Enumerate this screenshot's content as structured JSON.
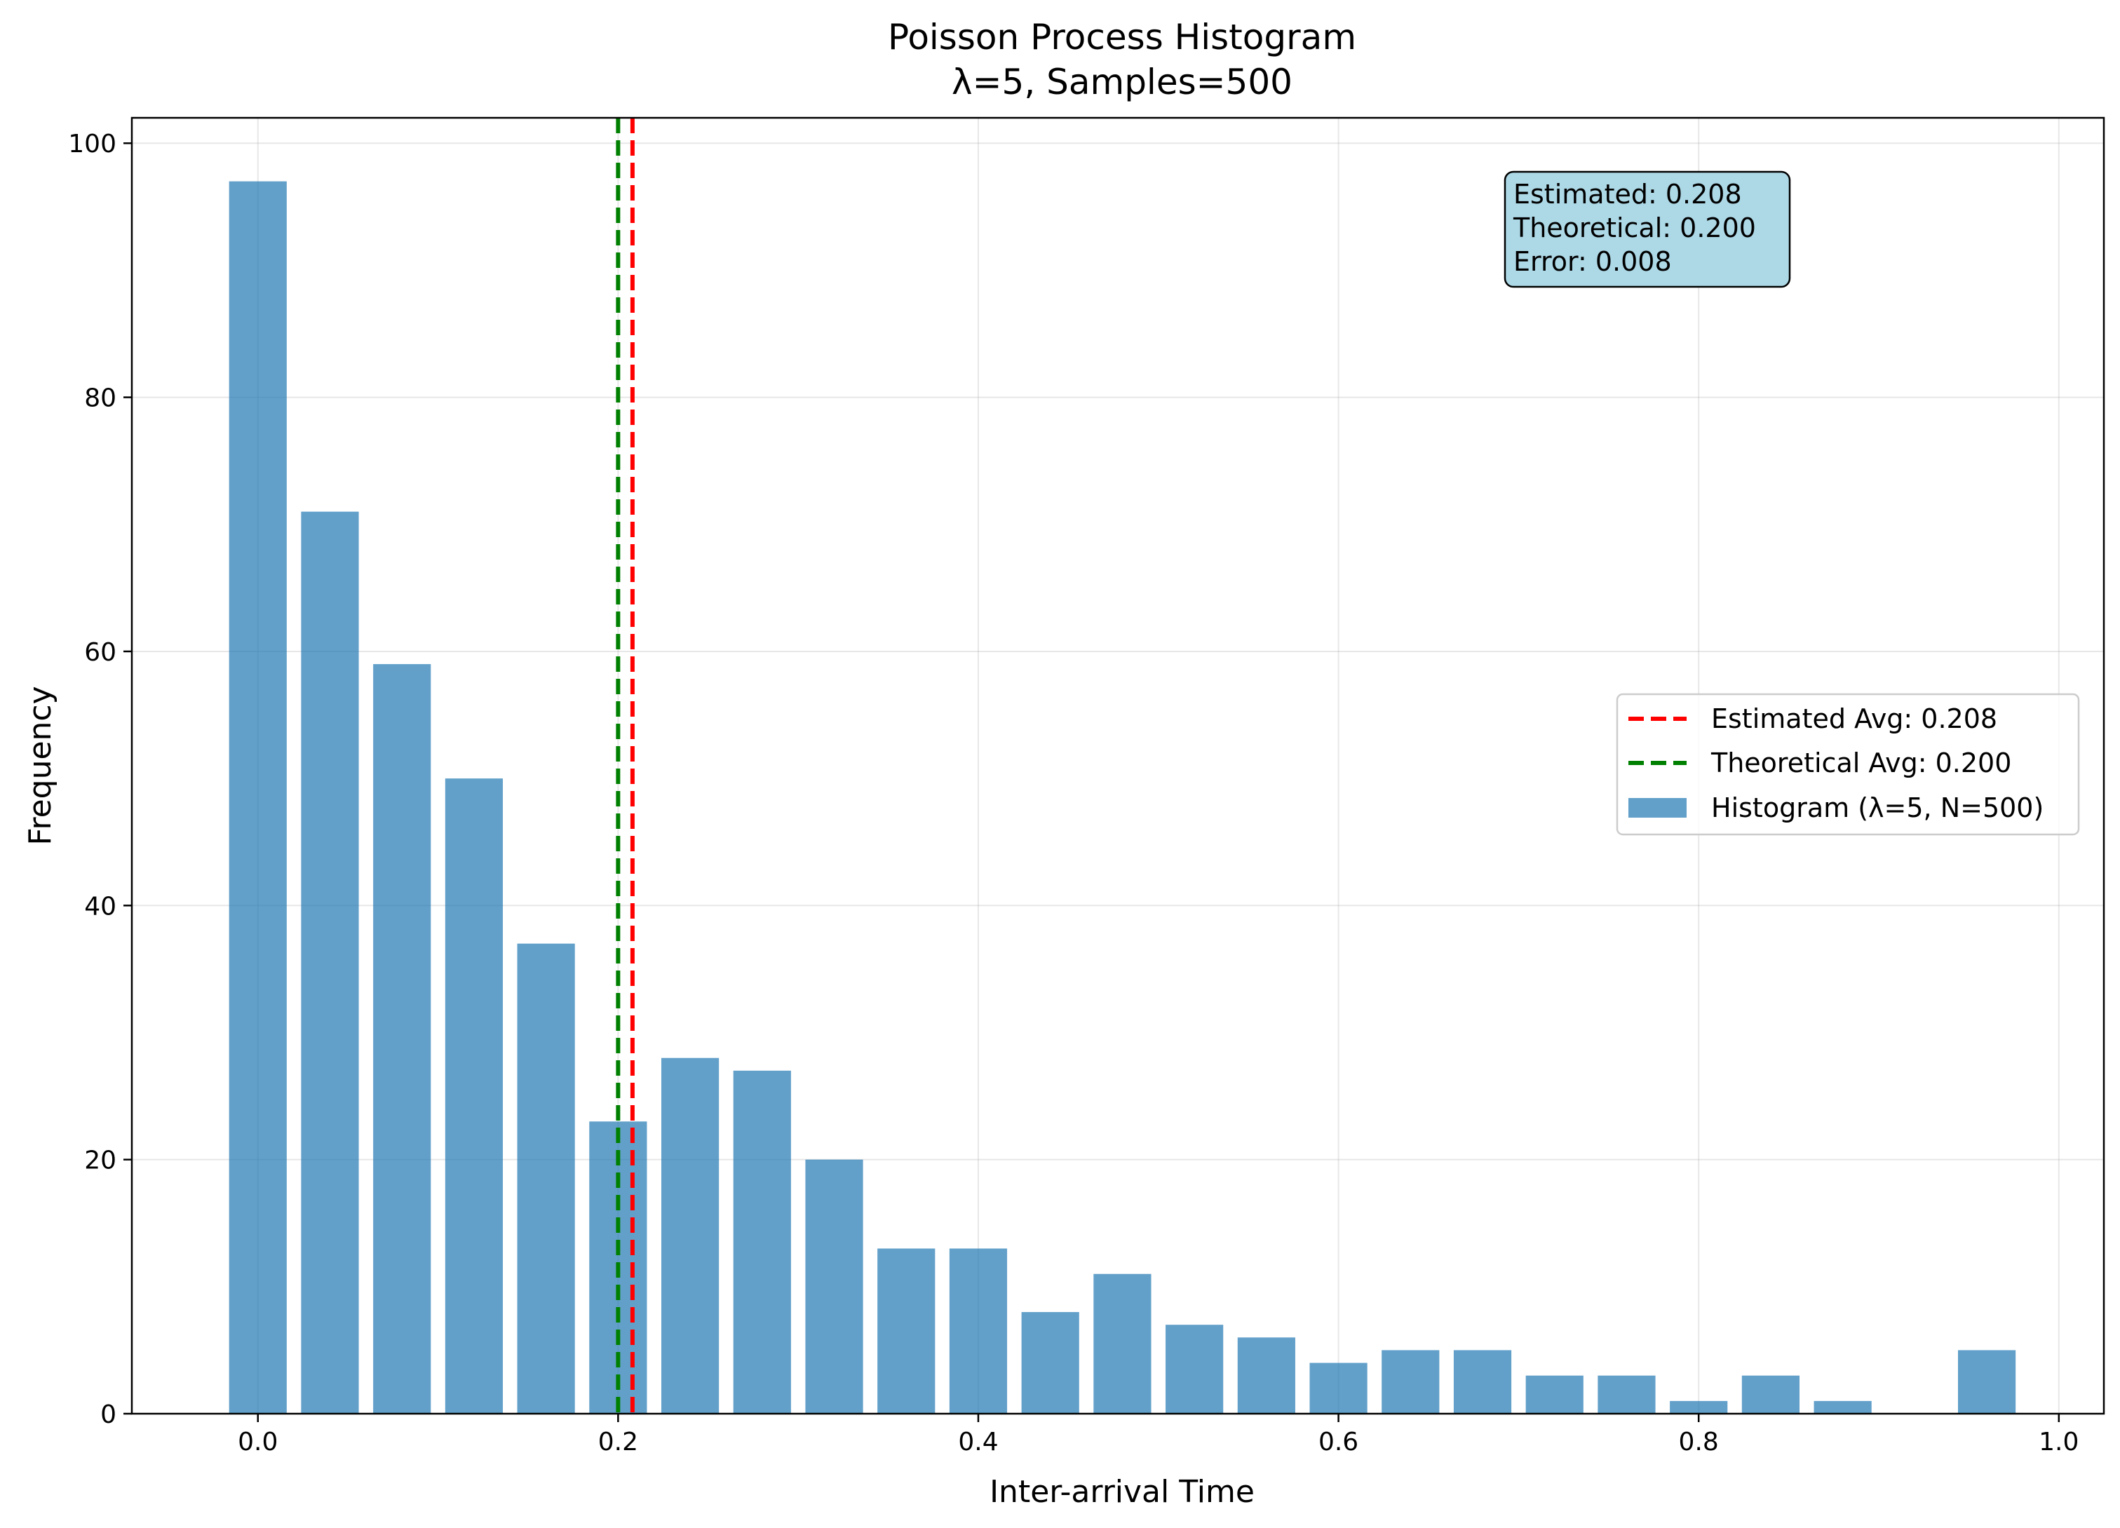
{
  "chart_data": {
    "type": "bar",
    "title": "Poisson Process Histogram",
    "subtitle": "λ=5, Samples=500",
    "xlabel": "Inter-arrival Time",
    "ylabel": "Frequency",
    "xlim": [
      -0.07,
      1.025
    ],
    "ylim": [
      0,
      102
    ],
    "xticks": [
      0.0,
      0.2,
      0.4,
      0.6,
      0.8,
      1.0
    ],
    "xtick_labels": [
      "0.0",
      "0.2",
      "0.4",
      "0.6",
      "0.8",
      "1.0"
    ],
    "yticks": [
      0,
      20,
      40,
      60,
      80,
      100
    ],
    "ytick_labels": [
      "0",
      "20",
      "40",
      "60",
      "80",
      "100"
    ],
    "grid": true,
    "bar_width": 0.032,
    "bar_color": "#1f77b4",
    "bar_opacity": 0.7,
    "series": [
      {
        "name": "Histogram (λ=5, N=500)",
        "x": [
          0.0,
          0.04,
          0.08,
          0.12,
          0.16,
          0.2,
          0.24,
          0.28,
          0.32,
          0.36,
          0.4,
          0.44,
          0.48,
          0.52,
          0.56,
          0.6,
          0.64,
          0.68,
          0.72,
          0.76,
          0.8,
          0.84,
          0.88,
          0.96
        ],
        "values": [
          97,
          71,
          59,
          50,
          37,
          23,
          28,
          27,
          20,
          13,
          13,
          8,
          11,
          7,
          6,
          4,
          5,
          5,
          3,
          3,
          1,
          3,
          1,
          5
        ]
      }
    ],
    "vlines": [
      {
        "name": "Estimated Avg: 0.208",
        "x": 0.208,
        "color": "#ff0000",
        "style": "dashed"
      },
      {
        "name": "Theoretical Avg: 0.200",
        "x": 0.2,
        "color": "#008000",
        "style": "dashed"
      }
    ],
    "legend": {
      "placement": "center-right",
      "entries": [
        "Estimated Avg: 0.208",
        "Theoretical Avg: 0.200",
        "Histogram (λ=5, N=500)"
      ]
    },
    "annotation": {
      "lines": [
        "Estimated: 0.208",
        "Theoretical: 0.200",
        "Error: 0.008"
      ],
      "placement": "top-right",
      "background": "#add8e6"
    }
  }
}
